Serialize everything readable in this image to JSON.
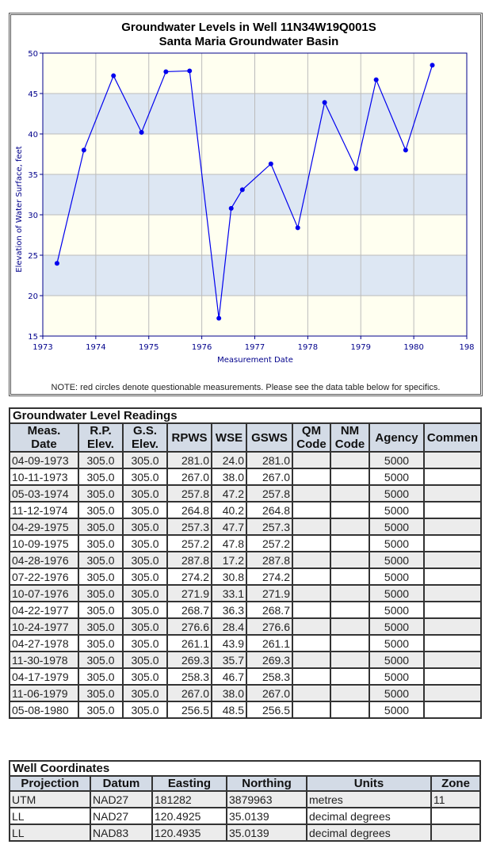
{
  "chart_data": {
    "type": "line",
    "title": "Groundwater Levels in Well 11N34W19Q001S",
    "subtitle": "Santa Maria Groundwater Basin",
    "xlabel": "Measurement Date",
    "ylabel": "Elevation of Water Surface, feet",
    "xlim": [
      1973,
      1981
    ],
    "ylim": [
      15,
      50
    ],
    "xticks": [
      "1973",
      "1974",
      "1975",
      "1976",
      "1977",
      "1978",
      "1979",
      "1980",
      "198"
    ],
    "yticks": [
      "15",
      "20",
      "25",
      "30",
      "35",
      "40",
      "45",
      "50"
    ],
    "grid": true,
    "colors": {
      "line": "#0000ee",
      "axis": "#00008b",
      "band": "#dde7f3",
      "bg": "#fffff0"
    },
    "x": [
      "04-09-1973",
      "10-11-1973",
      "05-03-1974",
      "11-12-1974",
      "04-29-1975",
      "10-09-1975",
      "04-28-1976",
      "07-22-1976",
      "10-07-1976",
      "04-22-1977",
      "10-24-1977",
      "04-27-1978",
      "11-30-1978",
      "04-17-1979",
      "11-06-1979",
      "05-08-1980"
    ],
    "y": [
      24.0,
      38.0,
      47.2,
      40.2,
      47.7,
      47.8,
      17.2,
      30.8,
      33.1,
      36.3,
      28.4,
      43.9,
      35.7,
      46.7,
      38.0,
      48.5
    ],
    "note": "NOTE: red circles denote questionable measurements. Please see the data table below for specifics."
  },
  "readings": {
    "title": "Groundwater Level Readings",
    "headers": [
      [
        "Meas.",
        "Date"
      ],
      [
        "R.P.",
        "Elev."
      ],
      [
        "G.S.",
        "Elev."
      ],
      [
        "RPWS",
        ""
      ],
      [
        "WSE",
        ""
      ],
      [
        "GSWS",
        ""
      ],
      [
        "QM",
        "Code"
      ],
      [
        "NM",
        "Code"
      ],
      [
        "Agency",
        ""
      ],
      [
        "Commen",
        ""
      ]
    ],
    "rows": [
      [
        "04-09-1973",
        "305.0",
        "305.0",
        "281.0",
        "24.0",
        "281.0",
        "",
        "",
        "5000",
        ""
      ],
      [
        "10-11-1973",
        "305.0",
        "305.0",
        "267.0",
        "38.0",
        "267.0",
        "",
        "",
        "5000",
        ""
      ],
      [
        "05-03-1974",
        "305.0",
        "305.0",
        "257.8",
        "47.2",
        "257.8",
        "",
        "",
        "5000",
        ""
      ],
      [
        "11-12-1974",
        "305.0",
        "305.0",
        "264.8",
        "40.2",
        "264.8",
        "",
        "",
        "5000",
        ""
      ],
      [
        "04-29-1975",
        "305.0",
        "305.0",
        "257.3",
        "47.7",
        "257.3",
        "",
        "",
        "5000",
        ""
      ],
      [
        "10-09-1975",
        "305.0",
        "305.0",
        "257.2",
        "47.8",
        "257.2",
        "",
        "",
        "5000",
        ""
      ],
      [
        "04-28-1976",
        "305.0",
        "305.0",
        "287.8",
        "17.2",
        "287.8",
        "",
        "",
        "5000",
        ""
      ],
      [
        "07-22-1976",
        "305.0",
        "305.0",
        "274.2",
        "30.8",
        "274.2",
        "",
        "",
        "5000",
        ""
      ],
      [
        "10-07-1976",
        "305.0",
        "305.0",
        "271.9",
        "33.1",
        "271.9",
        "",
        "",
        "5000",
        ""
      ],
      [
        "04-22-1977",
        "305.0",
        "305.0",
        "268.7",
        "36.3",
        "268.7",
        "",
        "",
        "5000",
        ""
      ],
      [
        "10-24-1977",
        "305.0",
        "305.0",
        "276.6",
        "28.4",
        "276.6",
        "",
        "",
        "5000",
        ""
      ],
      [
        "04-27-1978",
        "305.0",
        "305.0",
        "261.1",
        "43.9",
        "261.1",
        "",
        "",
        "5000",
        ""
      ],
      [
        "11-30-1978",
        "305.0",
        "305.0",
        "269.3",
        "35.7",
        "269.3",
        "",
        "",
        "5000",
        ""
      ],
      [
        "04-17-1979",
        "305.0",
        "305.0",
        "258.3",
        "46.7",
        "258.3",
        "",
        "",
        "5000",
        ""
      ],
      [
        "11-06-1979",
        "305.0",
        "305.0",
        "267.0",
        "38.0",
        "267.0",
        "",
        "",
        "5000",
        ""
      ],
      [
        "05-08-1980",
        "305.0",
        "305.0",
        "256.5",
        "48.5",
        "256.5",
        "",
        "",
        "5000",
        ""
      ]
    ]
  },
  "coords": {
    "title": "Well Coordinates",
    "headers": [
      "Projection",
      "Datum",
      "Easting",
      "Northing",
      "Units",
      "Zone"
    ],
    "rows": [
      [
        "UTM",
        "NAD27",
        "181282",
        "3879963",
        "metres",
        "11"
      ],
      [
        "LL",
        "NAD27",
        "120.4925",
        "35.0139",
        "decimal degrees",
        ""
      ],
      [
        "LL",
        "NAD83",
        "120.4935",
        "35.0139",
        "decimal degrees",
        ""
      ]
    ]
  }
}
